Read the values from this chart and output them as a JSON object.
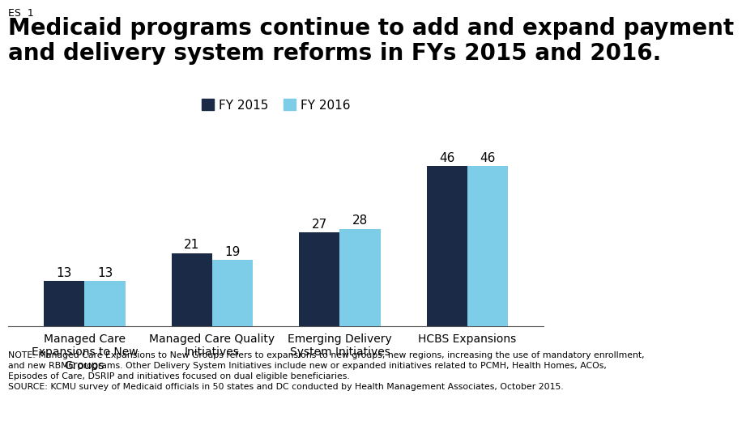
{
  "title_label": "ES  1",
  "title": "Medicaid programs continue to add and expand payment\nand delivery system reforms in FYs 2015 and 2016.",
  "categories": [
    "Managed Care\nExpansions to New\nGroups",
    "Managed Care Quality\nInitiatives",
    "Emerging Delivery\nSystem Initiatives",
    "HCBS Expansions"
  ],
  "fy2015_values": [
    13,
    21,
    27,
    46
  ],
  "fy2016_values": [
    13,
    19,
    28,
    46
  ],
  "color_2015": "#1b2a47",
  "color_2016": "#7ecde8",
  "legend_labels": [
    "FY 2015",
    "FY 2016"
  ],
  "ylim": [
    0,
    55
  ],
  "note_line1": "NOTE: Managed Care Expansions to New Groups refers to expansions to new groups, new regions, increasing the use of mandatory enrollment,",
  "note_line2": "and new RBMC programs. Other Delivery System Initiatives include new or expanded initiatives related to PCMH, Health Homes, ACOs,",
  "note_line3": "Episodes of Care, DSRIP and initiatives focused on dual eligible beneficiaries.",
  "source_line": "SOURCE: KCMU survey of Medicaid officials in 50 states and DC conducted by Health Management Associates, October 2015.",
  "kaiser_box_color": "#1b2a47",
  "bar_width": 0.32,
  "title_fontsize": 20,
  "label_fontsize": 10,
  "value_fontsize": 11,
  "note_fontsize": 7.8
}
